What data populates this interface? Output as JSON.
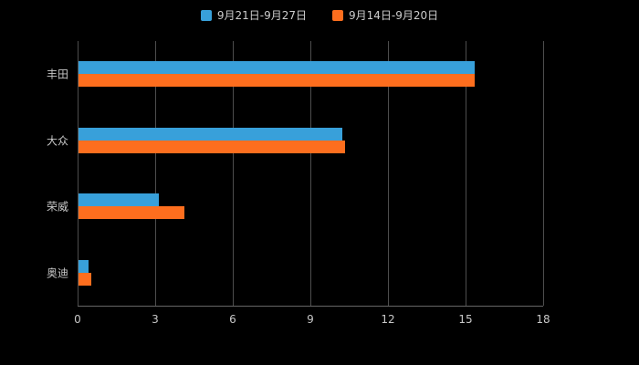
{
  "chart_data": {
    "type": "bar",
    "orientation": "horizontal",
    "title": "",
    "categories": [
      "丰田",
      "大众",
      "荣威",
      "奥迪"
    ],
    "series": [
      {
        "name": "9月21日-9月27日",
        "color": "#38a0da",
        "values": [
          15.3,
          10.2,
          3.1,
          0.4
        ]
      },
      {
        "name": "9月14日-9月20日",
        "color": "#fd6e1e",
        "values": [
          15.3,
          10.3,
          4.1,
          0.5
        ]
      }
    ],
    "xlabel": "",
    "ylabel": "",
    "xlim": [
      0,
      18
    ],
    "x_ticks": [
      0,
      3,
      6,
      9,
      12,
      15,
      18
    ],
    "legend_position": "top",
    "grid": true
  },
  "colors": {
    "background": "#000000",
    "grid": "#4d4d4d",
    "axis": "#666666",
    "text": "#c8c8c8",
    "series1": "#38a0da",
    "series2": "#fd6e1e"
  }
}
